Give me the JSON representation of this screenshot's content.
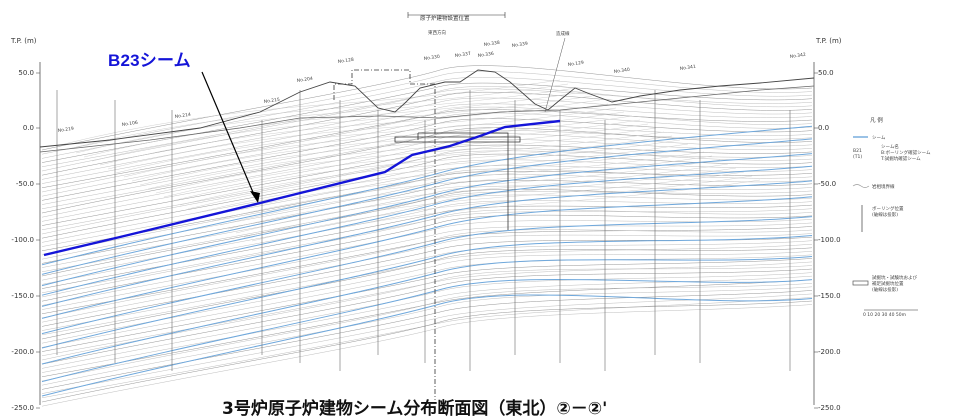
{
  "diagram": {
    "axis_title_left": "T.P. (m)",
    "axis_title_right": "T.P. (m)",
    "left_ticks": [
      "50.0",
      "0.0",
      "-50.0",
      "-100.0",
      "-150.0",
      "-200.0",
      "-250.0"
    ],
    "right_ticks": [
      "50.0",
      "0.0",
      "-50.0",
      "-100.0",
      "-150.0",
      "-200.0",
      "-250.0"
    ],
    "top_labels": {
      "building_position": "原子炉建物設置位置",
      "ew_direction": "東西方向",
      "fill_line": "造成線"
    },
    "borehole_labels": [
      "No.219",
      "No.106",
      "No.214",
      "No.215",
      "No.204",
      "No.128",
      "No.330",
      "No.337",
      "No.336",
      "No.338",
      "No.339",
      "No.129",
      "No.340",
      "No.341",
      "No.342"
    ],
    "callout": {
      "text": "B23シーム",
      "color": "#1414d8"
    },
    "caption": "3号炉原子炉建物シーム分布断面図（東北）②－②'",
    "legend": {
      "title": "凡 例",
      "seam": "シーム",
      "seam_name_code": "B21",
      "seam_name_code2": "(T1)",
      "seam_name_label": "シーム名",
      "seam_name_desc1": "B:ボーリング確認シーム",
      "seam_name_desc2": "T:試掘坑確認シーム",
      "boundary": "岩相境界線",
      "boring": "ボーリング位置",
      "boring_note": "(破線は投影)",
      "test_pit1": "試掘坑・試験坑および",
      "test_pit2": "補足試掘坑位置",
      "test_pit_note": "(破線は投影)",
      "scale": "0  10  20  30  40  50m"
    },
    "colors": {
      "seam_blue": "#6fa8dc",
      "highlight": "#1414d8",
      "line_gray": "#7a7a7a"
    }
  }
}
